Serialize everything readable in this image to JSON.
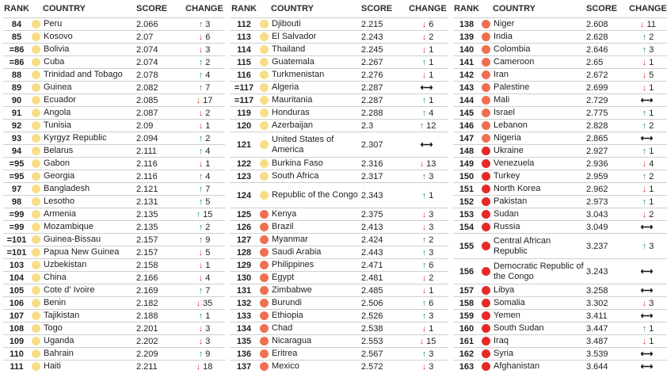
{
  "headers": {
    "rank": "RANK",
    "country": "COUNTRY",
    "score": "SCORE",
    "change": "CHANGE"
  },
  "tiers": {
    "yellow": "#f7de86",
    "orange": "#ef6f51",
    "red": "#e52a28"
  },
  "columns": [
    [
      [
        "84",
        "Peru",
        "2.066",
        "up",
        "3",
        "yellow"
      ],
      [
        "85",
        "Kosovo",
        "2.07",
        "down",
        "6",
        "yellow"
      ],
      [
        "=86",
        "Bolivia",
        "2.074",
        "down",
        "3",
        "yellow"
      ],
      [
        "=86",
        "Cuba",
        "2.074",
        "up",
        "2",
        "yellow"
      ],
      [
        "88",
        "Trinidad and Tobago",
        "2.078",
        "up",
        "4",
        "yellow"
      ],
      [
        "89",
        "Guinea",
        "2.082",
        "up",
        "7",
        "yellow"
      ],
      [
        "90",
        "Ecuador",
        "2.085",
        "down",
        "17",
        "yellow"
      ],
      [
        "91",
        "Angola",
        "2.087",
        "down",
        "2",
        "yellow"
      ],
      [
        "92",
        "Tunisia",
        "2.09",
        "down",
        "1",
        "yellow"
      ],
      [
        "93",
        "Kyrgyz Republic",
        "2.094",
        "up",
        "2",
        "yellow"
      ],
      [
        "94",
        "Belarus",
        "2.111",
        "up",
        "4",
        "yellow"
      ],
      [
        "=95",
        "Gabon",
        "2.116",
        "down",
        "1",
        "yellow"
      ],
      [
        "=95",
        "Georgia",
        "2.116",
        "up",
        "4",
        "yellow"
      ],
      [
        "97",
        "Bangladesh",
        "2.121",
        "up",
        "7",
        "yellow"
      ],
      [
        "98",
        "Lesotho",
        "2.131",
        "up",
        "5",
        "yellow"
      ],
      [
        "=99",
        "Armenia",
        "2.135",
        "up",
        "15",
        "yellow"
      ],
      [
        "=99",
        "Mozambique",
        "2.135",
        "up",
        "2",
        "yellow"
      ],
      [
        "=101",
        "Guinea-Bissau",
        "2.157",
        "up",
        "9",
        "yellow"
      ],
      [
        "=101",
        "Papua New Guinea",
        "2.157",
        "down",
        "5",
        "yellow"
      ],
      [
        "103",
        "Uzbekistan",
        "2.158",
        "down",
        "1",
        "yellow"
      ],
      [
        "104",
        "China",
        "2.166",
        "down",
        "4",
        "yellow"
      ],
      [
        "105",
        "Cote d' Ivoire",
        "2.169",
        "up",
        "7",
        "yellow"
      ],
      [
        "106",
        "Benin",
        "2.182",
        "down",
        "35",
        "yellow"
      ],
      [
        "107",
        "Tajikistan",
        "2.188",
        "up",
        "1",
        "yellow"
      ],
      [
        "108",
        "Togo",
        "2.201",
        "down",
        "3",
        "yellow"
      ],
      [
        "109",
        "Uganda",
        "2.202",
        "down",
        "3",
        "yellow"
      ],
      [
        "110",
        "Bahrain",
        "2.209",
        "up",
        "9",
        "yellow"
      ],
      [
        "111",
        "Haiti",
        "2.211",
        "down",
        "18",
        "yellow"
      ]
    ],
    [
      [
        "112",
        "Djibouti",
        "2.215",
        "down",
        "6",
        "yellow"
      ],
      [
        "113",
        "El Salvador",
        "2.243",
        "down",
        "2",
        "yellow"
      ],
      [
        "114",
        "Thailand",
        "2.245",
        "down",
        "1",
        "yellow"
      ],
      [
        "115",
        "Guatemala",
        "2.267",
        "up",
        "1",
        "yellow"
      ],
      [
        "116",
        "Turkmenistan",
        "2.276",
        "down",
        "1",
        "yellow"
      ],
      [
        "=117",
        "Algeria",
        "2.287",
        "none",
        "",
        "yellow"
      ],
      [
        "=117",
        "Mauritania",
        "2.287",
        "up",
        "1",
        "yellow"
      ],
      [
        "119",
        "Honduras",
        "2.288",
        "up",
        "4",
        "yellow"
      ],
      [
        "120",
        "Azerbaijan",
        "2.3",
        "up",
        "12",
        "yellow"
      ],
      [
        "121",
        "United States of America",
        "2.307",
        "none",
        "",
        "yellow"
      ],
      [
        "122",
        "Burkina Faso",
        "2.316",
        "down",
        "13",
        "yellow"
      ],
      [
        "123",
        "South Africa",
        "2.317",
        "up",
        "3",
        "yellow"
      ],
      [
        "124",
        "Republic of the Congo",
        "2.343",
        "up",
        "1",
        "yellow"
      ],
      [
        "125",
        "Kenya",
        "2.375",
        "down",
        "3",
        "orange"
      ],
      [
        "126",
        "Brazil",
        "2.413",
        "down",
        "3",
        "orange"
      ],
      [
        "127",
        "Myanmar",
        "2.424",
        "up",
        "2",
        "orange"
      ],
      [
        "128",
        "Saudi Arabia",
        "2.443",
        "up",
        "3",
        "orange"
      ],
      [
        "129",
        "Philippines",
        "2.471",
        "up",
        "6",
        "orange"
      ],
      [
        "130",
        "Egypt",
        "2.481",
        "down",
        "2",
        "orange"
      ],
      [
        "131",
        "Zimbabwe",
        "2.485",
        "down",
        "1",
        "orange"
      ],
      [
        "132",
        "Burundi",
        "2.506",
        "up",
        "6",
        "orange"
      ],
      [
        "133",
        "Ethiopia",
        "2.526",
        "up",
        "3",
        "orange"
      ],
      [
        "134",
        "Chad",
        "2.538",
        "down",
        "1",
        "orange"
      ],
      [
        "135",
        "Nicaragua",
        "2.553",
        "down",
        "15",
        "orange"
      ],
      [
        "136",
        "Eritrea",
        "2.567",
        "up",
        "3",
        "orange"
      ],
      [
        "137",
        "Mexico",
        "2.572",
        "down",
        "3",
        "orange"
      ]
    ],
    [
      [
        "138",
        "Niger",
        "2.608",
        "down",
        "11",
        "orange"
      ],
      [
        "139",
        "India",
        "2.628",
        "up",
        "2",
        "orange"
      ],
      [
        "140",
        "Colombia",
        "2.646",
        "up",
        "3",
        "orange"
      ],
      [
        "141",
        "Cameroon",
        "2.65",
        "down",
        "1",
        "orange"
      ],
      [
        "142",
        "Iran",
        "2.672",
        "down",
        "5",
        "orange"
      ],
      [
        "143",
        "Palestine",
        "2.699",
        "down",
        "1",
        "orange"
      ],
      [
        "144",
        "Mali",
        "2.729",
        "none",
        "",
        "orange"
      ],
      [
        "145",
        "Israel",
        "2.775",
        "up",
        "1",
        "orange"
      ],
      [
        "146",
        "Lebanon",
        "2.828",
        "up",
        "2",
        "orange"
      ],
      [
        "147",
        "Nigeria",
        "2.865",
        "none",
        "",
        "orange"
      ],
      [
        "148",
        "Ukraine",
        "2.927",
        "up",
        "1",
        "red"
      ],
      [
        "149",
        "Venezuela",
        "2.936",
        "down",
        "4",
        "red"
      ],
      [
        "150",
        "Turkey",
        "2.959",
        "up",
        "2",
        "red"
      ],
      [
        "151",
        "North Korea",
        "2.962",
        "down",
        "1",
        "red"
      ],
      [
        "152",
        "Pakistan",
        "2.973",
        "up",
        "1",
        "red"
      ],
      [
        "153",
        "Sudan",
        "3.043",
        "down",
        "2",
        "red"
      ],
      [
        "154",
        "Russia",
        "3.049",
        "none",
        "",
        "red"
      ],
      [
        "155",
        "Central African Republic",
        "3.237",
        "up",
        "3",
        "red"
      ],
      [
        "156",
        "Democratic Republic of the Congo",
        "3.243",
        "none",
        "",
        "red"
      ],
      [
        "157",
        "Libya",
        "3.258",
        "none",
        "",
        "red"
      ],
      [
        "158",
        "Somalia",
        "3.302",
        "down",
        "3",
        "red"
      ],
      [
        "159",
        "Yemen",
        "3.411",
        "none",
        "",
        "red"
      ],
      [
        "160",
        "South Sudan",
        "3.447",
        "up",
        "1",
        "red"
      ],
      [
        "161",
        "Iraq",
        "3.487",
        "down",
        "1",
        "red"
      ],
      [
        "162",
        "Syria",
        "3.539",
        "none",
        "",
        "red"
      ],
      [
        "163",
        "Afghanistan",
        "3.644",
        "none",
        "",
        "red"
      ]
    ]
  ]
}
